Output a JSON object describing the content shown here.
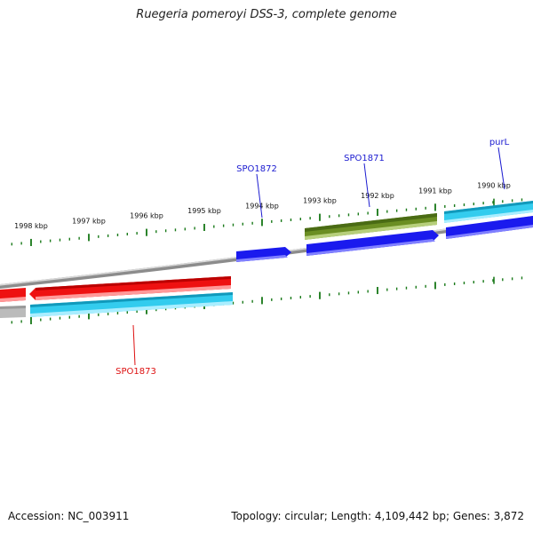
{
  "title": "Ruegeria pomeroyi DSS-3, complete genome",
  "footer": {
    "accession": "Accession: NC_003911",
    "summary": "Topology: circular; Length: 4,109,442 bp; Genes: 3,872"
  },
  "colors": {
    "forward_cds": "#1a1aee",
    "reverse_cds": "#ee1111",
    "rrna": "#6b8e23",
    "cyan_feature": "#33ccee",
    "gray_feature": "#bbbbbb",
    "tick": "#1a7a1a",
    "label_forward": "#1a1ad0",
    "label_reverse": "#dd1111",
    "backbone": "#888888"
  },
  "tick_labels": [
    "1998 kbp",
    "1997 kbp",
    "1996 kbp",
    "1995 kbp",
    "1994 kbp",
    "1993 kbp",
    "1992 kbp",
    "1991 kbp",
    "1990 kbp"
  ],
  "gene_labels": {
    "purL": "purL",
    "spo1871": "SPO1871",
    "spo1872": "SPO1872",
    "spo1873": "SPO1873"
  }
}
